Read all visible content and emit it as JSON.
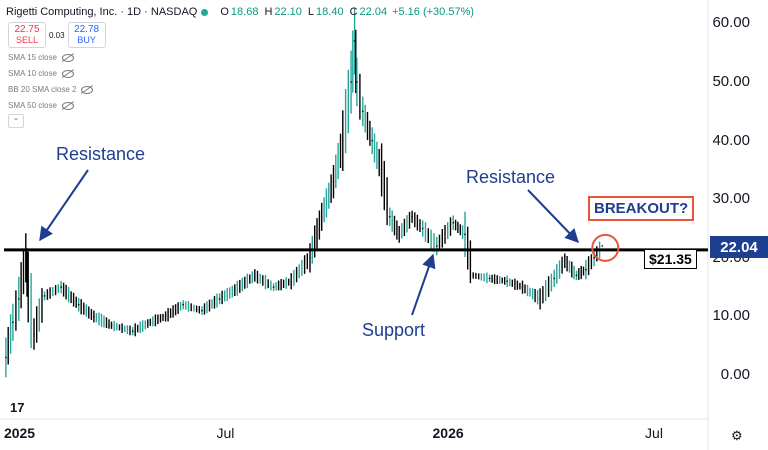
{
  "header": {
    "symbol": "Rigetti Computing, Inc. · 1D · NASDAQ",
    "o_label": "O",
    "o_val": "18.68",
    "h_label": "H",
    "h_val": "22.10",
    "l_label": "L",
    "l_val": "18.40",
    "c_label": "C",
    "c_val": "22.04",
    "change": "+5.16 (+30.57%)"
  },
  "trade": {
    "sell_price": "22.75",
    "sell_label": "SELL",
    "spread": "0.03",
    "buy_price": "22.78",
    "buy_label": "BUY"
  },
  "indicators": [
    "SMA 15 close",
    "SMA 10 close",
    "BB 20 SMA close 2",
    "SMA 50 close"
  ],
  "annotations": {
    "resistance_left": "Resistance",
    "resistance_right": "Resistance",
    "support": "Support",
    "breakout": "BREAKOUT?",
    "level_label": "$21.35",
    "last_price": "22.04"
  },
  "colors": {
    "up": "#26a69a",
    "down": "#000000",
    "annotation": "#1f3e8f",
    "breakout_circle": "#e8553a",
    "price_tag": "#1e3e8f"
  },
  "icons": {
    "logo": "tradingview-logo-icon",
    "settings": "gear-icon"
  },
  "chart_data": {
    "type": "line",
    "title": "Rigetti Computing, Inc. · 1D · NASDAQ",
    "x": [
      "2024-12-20",
      "2024-12-26",
      "2024-12-31",
      "2025-01-06",
      "2025-01-08",
      "2025-01-13",
      "2025-01-22",
      "2025-02-05",
      "2025-02-20",
      "2025-03-05",
      "2025-03-20",
      "2025-04-07",
      "2025-04-22",
      "2025-05-05",
      "2025-05-20",
      "2025-06-05",
      "2025-06-20",
      "2025-07-03",
      "2025-07-20",
      "2025-08-05",
      "2025-08-20",
      "2025-09-05",
      "2025-09-15",
      "2025-09-25",
      "2025-10-03",
      "2025-10-10",
      "2025-10-13",
      "2025-10-15",
      "2025-10-20",
      "2025-10-28",
      "2025-11-05",
      "2025-11-12",
      "2025-11-20",
      "2025-12-01",
      "2025-12-10",
      "2025-12-22",
      "2026-01-05",
      "2026-01-15",
      "2026-01-22",
      "2026-02-05",
      "2026-02-20",
      "2026-03-05",
      "2026-03-20",
      "2026-04-01",
      "2026-04-10",
      "2026-04-20",
      "2026-04-28",
      "2026-05-05",
      "2026-05-12"
    ],
    "series": [
      {
        "values": [
          3.0,
          9.0,
          13.0,
          20.0,
          15.0,
          7.0,
          13.5,
          15.0,
          12.0,
          10.0,
          8.5,
          7.5,
          9.0,
          10.0,
          12.0,
          11.0,
          13.0,
          14.5,
          17.0,
          15.0,
          16.0,
          20.0,
          27.0,
          33.0,
          40.0,
          50.0,
          57.0,
          50.0,
          45.0,
          40.0,
          35.0,
          27.0,
          24.0,
          27.0,
          25.0,
          22.0,
          26.0,
          24.0,
          17.0,
          16.5,
          16.0,
          15.0,
          13.0,
          16.5,
          19.5,
          17.0,
          18.0,
          20.0,
          22.04
        ]
      }
    ],
    "xtick_labels": [
      "2025",
      "Jul",
      "2026",
      "Jul"
    ],
    "xtick_dates": [
      "2025-01-01",
      "2025-07-01",
      "2026-01-01",
      "2026-07-01"
    ],
    "xtick_bold": [
      true,
      false,
      true,
      false
    ],
    "yticks": [
      "0.00",
      "10.00",
      "20.00",
      "30.00",
      "40.00",
      "50.00",
      "60.00"
    ],
    "ylim": [
      -7.5,
      64
    ],
    "horizontal_level": 21.35,
    "last_price": 22.04,
    "grid": false
  }
}
